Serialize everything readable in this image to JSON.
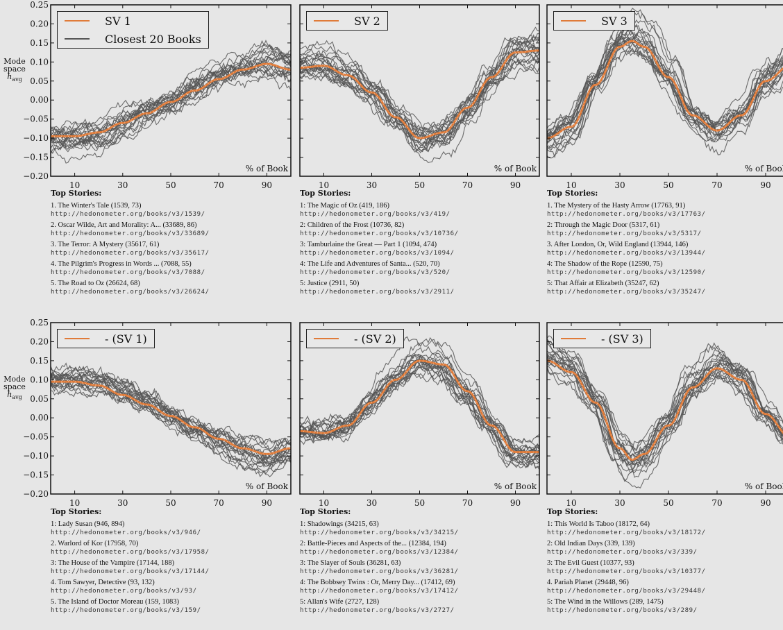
{
  "figure": {
    "ylabel_lines": [
      "Mode",
      "space",
      "h_avg"
    ],
    "xlabel": "% of Book",
    "stories_header": "Top Stories:",
    "y_ticks": [
      "0.25",
      "0.20",
      "0.15",
      "0.10",
      "0.05",
      "0.00",
      "-0.05",
      "-0.10",
      "-0.15",
      "-0.20"
    ],
    "x_ticks": [
      "10",
      "30",
      "50",
      "70",
      "90"
    ],
    "colors": {
      "sv": "#e07b39",
      "books": "#555555",
      "background": "#e6e6e6"
    }
  },
  "chart_data": [
    {
      "type": "line",
      "row": 1,
      "col": 1,
      "legend": [
        "SV 1",
        "Closest 20 Books"
      ],
      "xlabel": "% of Book",
      "xlim": [
        0,
        100
      ],
      "ylim": [
        -0.2,
        0.25
      ],
      "x": [
        0,
        10,
        20,
        30,
        40,
        50,
        60,
        70,
        80,
        90,
        100
      ],
      "series": [
        {
          "name": "SV 1",
          "values": [
            -0.095,
            -0.095,
            -0.085,
            -0.06,
            -0.035,
            -0.005,
            0.025,
            0.055,
            0.08,
            0.095,
            0.08
          ]
        }
      ],
      "top_stories": [
        {
          "title": "1. The Winter's Tale (1539, 73)",
          "url": "http://hedonometer.org/books/v3/1539/"
        },
        {
          "title": "2. Oscar Wilde, Art and Morality: A... (33689, 86)",
          "url": "http://hedonometer.org/books/v3/33689/"
        },
        {
          "title": "3. The Terror: A Mystery (35617, 61)",
          "url": "http://hedonometer.org/books/v3/35617/"
        },
        {
          "title": "4. The Pilgrim's Progress in Words ... (7088, 55)",
          "url": "http://hedonometer.org/books/v3/7088/"
        },
        {
          "title": "5. The Road to Oz (26624, 68)",
          "url": "http://hedonometer.org/books/v3/26624/"
        }
      ]
    },
    {
      "type": "line",
      "row": 1,
      "col": 2,
      "legend": [
        "SV 2"
      ],
      "xlabel": "% of Book",
      "xlim": [
        0,
        100
      ],
      "ylim": [
        -0.2,
        0.25
      ],
      "x": [
        0,
        10,
        20,
        30,
        40,
        50,
        60,
        70,
        80,
        90,
        100
      ],
      "series": [
        {
          "name": "SV 2",
          "values": [
            0.085,
            0.09,
            0.065,
            0.02,
            -0.045,
            -0.1,
            -0.085,
            -0.02,
            0.06,
            0.125,
            0.13
          ]
        }
      ],
      "top_stories": [
        {
          "title": "1: The Magic of Oz (419, 186)",
          "url": "http://hedonometer.org/books/v3/419/"
        },
        {
          "title": "2: Children of the Frost (10736, 82)",
          "url": "http://hedonometer.org/books/v3/10736/"
        },
        {
          "title": "3: Tamburlaine the Great — Part 1 (1094, 474)",
          "url": "http://hedonometer.org/books/v3/1094/"
        },
        {
          "title": "4: The Life and Adventures of Santa... (520, 70)",
          "url": "http://hedonometer.org/books/v3/520/"
        },
        {
          "title": "5: Justice (2911, 50)",
          "url": "http://hedonometer.org/books/v3/2911/"
        }
      ]
    },
    {
      "type": "line",
      "row": 1,
      "col": 3,
      "legend": [
        "SV 3"
      ],
      "xlabel": "% of Book",
      "xlim": [
        0,
        100
      ],
      "ylim": [
        -0.2,
        0.25
      ],
      "x": [
        0,
        10,
        20,
        30,
        35,
        40,
        50,
        60,
        70,
        80,
        90,
        100
      ],
      "series": [
        {
          "name": "SV 3",
          "values": [
            -0.1,
            -0.07,
            0.04,
            0.14,
            0.155,
            0.14,
            0.06,
            -0.04,
            -0.08,
            -0.04,
            0.05,
            0.09
          ]
        }
      ],
      "top_stories": [
        {
          "title": "1. The Mystery of the Hasty Arrow (17763, 91)",
          "url": "http://hedonometer.org/books/v3/17763/"
        },
        {
          "title": "2: Through the Magic Door (5317, 61)",
          "url": "http://hedonometer.org/books/v3/5317/"
        },
        {
          "title": "3. After London, Or, Wild England (13944, 146)",
          "url": "http://hedonometer.org/books/v3/13944/"
        },
        {
          "title": "4: The Shadow of the Rope (12590, 75)",
          "url": "http://hedonometer.org/books/v3/12590/"
        },
        {
          "title": "5: That Affair at Elizabeth (35247, 62)",
          "url": "http://hedonometer.org/books/v3/35247/"
        }
      ]
    },
    {
      "type": "line",
      "row": 2,
      "col": 1,
      "legend": [
        "- (SV 1)"
      ],
      "xlabel": "% of Book",
      "xlim": [
        0,
        100
      ],
      "ylim": [
        -0.2,
        0.25
      ],
      "x": [
        0,
        10,
        20,
        30,
        40,
        50,
        60,
        70,
        80,
        90,
        100
      ],
      "series": [
        {
          "name": "- (SV 1)",
          "values": [
            0.095,
            0.095,
            0.085,
            0.06,
            0.035,
            0.005,
            -0.025,
            -0.055,
            -0.08,
            -0.095,
            -0.08
          ]
        }
      ],
      "top_stories": [
        {
          "title": "1: Lady Susan (946, 894)",
          "url": "http://hedonometer.org/books/v3/946/"
        },
        {
          "title": "2. Warlord of Kor (17958, 70)",
          "url": "http://hedonometer.org/books/v3/17958/"
        },
        {
          "title": "3: The House of the Vampire (17144, 188)",
          "url": "http://hedonometer.org/books/v3/17144/"
        },
        {
          "title": "4. Tom Sawyer, Detective (93, 132)",
          "url": "http://hedonometer.org/books/v3/93/"
        },
        {
          "title": "5. The Island of Doctor Moreau (159, 1083)",
          "url": "http://hedonometer.org/books/v3/159/"
        }
      ]
    },
    {
      "type": "line",
      "row": 2,
      "col": 2,
      "legend": [
        "- (SV 2)"
      ],
      "xlabel": "% of Book",
      "xlim": [
        0,
        100
      ],
      "ylim": [
        -0.2,
        0.25
      ],
      "x": [
        0,
        10,
        20,
        30,
        40,
        50,
        60,
        70,
        80,
        90,
        100
      ],
      "series": [
        {
          "name": "- (SV 2)",
          "values": [
            -0.035,
            -0.04,
            -0.02,
            0.04,
            0.1,
            0.15,
            0.14,
            0.07,
            -0.02,
            -0.09,
            -0.09
          ]
        }
      ],
      "top_stories": [
        {
          "title": "1: Shadowings (34215, 63)",
          "url": "http://hedonometer.org/books/v3/34215/"
        },
        {
          "title": "2: Battle-Pieces and Aspects of the... (12384, 194)",
          "url": "http://hedonometer.org/books/v3/12384/"
        },
        {
          "title": "3: The Slayer of Souls (36281, 63)",
          "url": "http://hedonometer.org/books/v3/36281/"
        },
        {
          "title": "4: The Bobbsey Twins : Or, Merry Day... (17412, 69)",
          "url": "http://hedonometer.org/books/v3/17412/"
        },
        {
          "title": "5: Allan's Wife (2727, 128)",
          "url": "http://hedonometer.org/books/v3/2727/"
        }
      ]
    },
    {
      "type": "line",
      "row": 2,
      "col": 3,
      "legend": [
        "- (SV 3)"
      ],
      "xlabel": "% of Book",
      "xlim": [
        0,
        100
      ],
      "ylim": [
        -0.2,
        0.25
      ],
      "x": [
        0,
        10,
        20,
        30,
        35,
        40,
        50,
        60,
        70,
        80,
        90,
        100
      ],
      "series": [
        {
          "name": "- (SV 3)",
          "values": [
            0.15,
            0.12,
            0.04,
            -0.08,
            -0.11,
            -0.095,
            -0.02,
            0.08,
            0.13,
            0.1,
            0.01,
            -0.05
          ]
        }
      ],
      "top_stories": [
        {
          "title": "1: This World Is Taboo (18172, 64)",
          "url": "http://hedonometer.org/books/v3/18172/"
        },
        {
          "title": "2: Old Indian Days (339, 139)",
          "url": "http://hedonometer.org/books/v3/339/"
        },
        {
          "title": "3: The Evil Guest (10377, 93)",
          "url": "http://hedonometer.org/books/v3/10377/"
        },
        {
          "title": "4. Pariah Planet (29448, 96)",
          "url": "http://hedonometer.org/books/v3/29448/"
        },
        {
          "title": "5: The Wind in the Willows (289, 1475)",
          "url": "http://hedonometer.org/books/v3/289/"
        }
      ]
    }
  ]
}
